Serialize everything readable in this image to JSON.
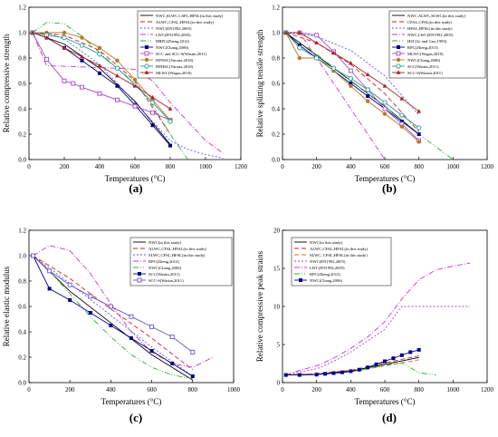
{
  "chart_data": [
    {
      "type": "line",
      "panel_label": "(a)",
      "xlabel": "Temperatures (°C)",
      "ylabel": "Relative compressive strength",
      "xlim": [
        0,
        1200
      ],
      "ylim": [
        0,
        1.2
      ],
      "xticks": [
        0,
        200,
        400,
        600,
        800,
        1000,
        1200
      ],
      "yticks": [
        0,
        0.2,
        0.4,
        0.6,
        0.8,
        1.0,
        1.2
      ],
      "legend_position": "top-right",
      "series": [
        {
          "name": "NWC,SLWC,CSFL,HFSL(in this study)",
          "color": "#000000",
          "dash": "",
          "marker": "",
          "x": [
            20,
            200,
            400,
            600,
            800
          ],
          "y": [
            1.0,
            0.91,
            0.72,
            0.46,
            0.12
          ]
        },
        {
          "name": "ALWC,CFAL,HFAL(in this study)",
          "color": "#cc2222",
          "dash": "5,3",
          "marker": "",
          "x": [
            20,
            200,
            400,
            600,
            800
          ],
          "y": [
            1.0,
            0.98,
            0.86,
            0.62,
            0.2
          ]
        },
        {
          "name": "NWC(EN1992,2005)",
          "color": "#5555ff",
          "dash": "2,2",
          "marker": "",
          "x": [
            20,
            100,
            200,
            300,
            400,
            500,
            600,
            700,
            800,
            900,
            1000,
            1100
          ],
          "y": [
            1.0,
            1.0,
            0.95,
            0.85,
            0.75,
            0.6,
            0.45,
            0.3,
            0.15,
            0.08,
            0.04,
            0.01
          ]
        },
        {
          "name": "LWC(EN1992,2005)",
          "color": "#cc33cc",
          "dash": "6,2,1,2",
          "marker": "",
          "x": [
            20,
            100,
            300,
            500,
            600,
            700,
            800,
            900,
            1000,
            1100
          ],
          "y": [
            1.0,
            0.74,
            0.73,
            0.72,
            0.71,
            0.62,
            0.45,
            0.3,
            0.15,
            0.05
          ]
        },
        {
          "name": "HRPC(Zheng,2012)",
          "color": "#33aa33",
          "dash": "6,2,1,2,1,2",
          "marker": "",
          "x": [
            20,
            100,
            200,
            300,
            400,
            500,
            600,
            700,
            800,
            900
          ],
          "y": [
            1.0,
            1.08,
            1.07,
            0.97,
            0.84,
            0.72,
            0.6,
            0.43,
            0.2,
            0.0
          ]
        },
        {
          "name": "NWC(Chang,2006)",
          "color": "#000088",
          "dash": "",
          "marker": "square",
          "x": [
            20,
            100,
            200,
            300,
            400,
            500,
            600,
            700,
            800
          ],
          "y": [
            1.0,
            0.96,
            0.88,
            0.78,
            0.68,
            0.58,
            0.43,
            0.27,
            0.11
          ]
        },
        {
          "name": "SCC and SCC-S(Wasim,2011)",
          "color": "#aa44cc",
          "dash": "",
          "marker": "open-square",
          "x": [
            20,
            100,
            200,
            250,
            300,
            400,
            500,
            600,
            700,
            800
          ],
          "y": [
            1.0,
            0.79,
            0.62,
            0.6,
            0.57,
            0.52,
            0.47,
            0.42,
            0.37,
            0.31
          ]
        },
        {
          "name": "HFNSC(Varona,2018)",
          "color": "#b5792a",
          "dash": "",
          "marker": "circle",
          "x": [
            20,
            100,
            200,
            300,
            400,
            500,
            600,
            700,
            800
          ],
          "y": [
            1.0,
            1.0,
            1.0,
            0.96,
            0.88,
            0.78,
            0.63,
            0.47,
            0.31
          ]
        },
        {
          "name": "HFHSC(Varona,2018)",
          "color": "#229999",
          "dash": "",
          "marker": "open-circle",
          "x": [
            20,
            100,
            200,
            300,
            400,
            500,
            600,
            700,
            800
          ],
          "y": [
            1.0,
            0.98,
            0.96,
            0.9,
            0.83,
            0.72,
            0.59,
            0.45,
            0.3
          ]
        },
        {
          "name": "MLWC(Wagas,2018)",
          "color": "#aa2222",
          "dash": "",
          "marker": "triangle",
          "x": [
            20,
            100,
            200,
            300,
            400,
            500,
            600,
            700,
            800
          ],
          "y": [
            1.0,
            0.96,
            0.88,
            0.81,
            0.74,
            0.66,
            0.58,
            0.49,
            0.4
          ]
        }
      ]
    },
    {
      "type": "line",
      "panel_label": "(b)",
      "xlabel": "Temperatures (°C)",
      "ylabel": "Relative splitting tensile strength",
      "xlim": [
        0,
        1200
      ],
      "ylim": [
        0,
        1.2
      ],
      "xticks": [
        0,
        200,
        400,
        600,
        800,
        1000,
        1200
      ],
      "yticks": [
        0,
        0.2,
        0.4,
        0.6,
        0.8,
        1.0,
        1.2
      ],
      "legend_position": "top-right",
      "series": [
        {
          "name": "NWC,ALWC,SLWC(in this study)",
          "color": "#000000",
          "dash": "",
          "marker": "",
          "x": [
            20,
            200,
            400,
            600,
            800
          ],
          "y": [
            1.0,
            0.82,
            0.62,
            0.42,
            0.2
          ]
        },
        {
          "name": "CFAL,CFSL(in this study)",
          "color": "#cc2222",
          "dash": "5,3",
          "marker": "",
          "x": [
            20,
            200,
            400,
            600,
            800
          ],
          "y": [
            1.0,
            0.92,
            0.75,
            0.52,
            0.22
          ]
        },
        {
          "name": "HFAL,HFSL(in this study)",
          "color": "#5555ff",
          "dash": "2,2",
          "marker": "",
          "x": [
            20,
            200,
            400,
            600,
            800
          ],
          "y": [
            1.0,
            0.97,
            0.86,
            0.66,
            0.35
          ]
        },
        {
          "name": "NWC,LWC(EN1992,2005)",
          "color": "#cc33cc",
          "dash": "6,2,1,2",
          "marker": "",
          "x": [
            20,
            100,
            200,
            300,
            400,
            500,
            600
          ],
          "y": [
            1.0,
            1.0,
            0.8,
            0.6,
            0.4,
            0.2,
            0.0
          ]
        },
        {
          "name": "HSC(Li and Guo,1993)",
          "color": "#33aa33",
          "dash": "6,2,1,2,1,2",
          "marker": "",
          "x": [
            20,
            200,
            400,
            600,
            800,
            1000
          ],
          "y": [
            1.0,
            0.83,
            0.62,
            0.42,
            0.2,
            0.0
          ]
        },
        {
          "name": "RPC(Zheng,2013)",
          "color": "#000088",
          "dash": "",
          "marker": "square",
          "x": [
            20,
            100,
            200,
            300,
            400,
            500,
            600,
            700,
            800
          ],
          "y": [
            1.0,
            0.9,
            0.8,
            0.7,
            0.6,
            0.5,
            0.4,
            0.3,
            0.2
          ]
        },
        {
          "name": "MLWC(Wagas,2018)",
          "color": "#aa44cc",
          "dash": "",
          "marker": "open-square",
          "x": [
            20,
            100,
            200,
            300,
            400,
            500,
            600,
            700,
            800
          ],
          "y": [
            1.0,
            1.0,
            0.98,
            0.85,
            0.7,
            0.55,
            0.4,
            0.28,
            0.15
          ]
        },
        {
          "name": "NWC(Chang,2006)",
          "color": "#b5792a",
          "dash": "",
          "marker": "circle",
          "x": [
            20,
            100,
            200,
            300,
            400,
            500,
            600,
            700,
            800
          ],
          "y": [
            1.0,
            0.8,
            0.8,
            0.7,
            0.58,
            0.46,
            0.36,
            0.26,
            0.14
          ]
        },
        {
          "name": "SCC(Wasim,2011)",
          "color": "#229999",
          "dash": "",
          "marker": "open-circle",
          "x": [
            20,
            100,
            200,
            300,
            400,
            500,
            600,
            700,
            800
          ],
          "y": [
            1.0,
            0.88,
            0.8,
            0.72,
            0.64,
            0.55,
            0.45,
            0.35,
            0.25
          ]
        },
        {
          "name": "SCC-S(Wasim,2011)",
          "color": "#aa2222",
          "dash": "",
          "marker": "triangle",
          "x": [
            20,
            100,
            200,
            300,
            400,
            500,
            600,
            700,
            800
          ],
          "y": [
            1.0,
            1.0,
            0.92,
            0.84,
            0.76,
            0.67,
            0.58,
            0.48,
            0.38
          ]
        }
      ]
    },
    {
      "type": "line",
      "panel_label": "(c)",
      "xlabel": "Temperatures (°C)",
      "ylabel": "Relative elastic modulus",
      "xlim": [
        0,
        1000
      ],
      "ylim": [
        0,
        1.2
      ],
      "xticks": [
        0,
        200,
        400,
        600,
        800,
        1000
      ],
      "yticks": [
        0,
        0.2,
        0.4,
        0.6,
        0.8,
        1.0,
        1.2
      ],
      "legend_position": "top-right",
      "series": [
        {
          "name": "NWC(in this study)",
          "color": "#000000",
          "dash": "",
          "marker": "",
          "x": [
            20,
            200,
            400,
            600,
            800
          ],
          "y": [
            1.0,
            0.72,
            0.47,
            0.22,
            0.02
          ]
        },
        {
          "name": "ALWC,CFAL,HFAL(in this study)",
          "color": "#cc2222",
          "dash": "5,3",
          "marker": "",
          "x": [
            20,
            200,
            400,
            600,
            800
          ],
          "y": [
            1.0,
            0.82,
            0.58,
            0.35,
            0.1
          ]
        },
        {
          "name": "SLWC,CFSL,HFSL(in this study)",
          "color": "#5555ff",
          "dash": "2,2",
          "marker": "",
          "x": [
            20,
            200,
            400,
            600,
            800
          ],
          "y": [
            1.0,
            0.78,
            0.53,
            0.28,
            0.05
          ]
        },
        {
          "name": "RPC(Zheng,2012)",
          "color": "#cc33cc",
          "dash": "6,2,1,2",
          "marker": "",
          "x": [
            20,
            100,
            200,
            300,
            400,
            500,
            600,
            700,
            800,
            900
          ],
          "y": [
            1.0,
            1.08,
            1.04,
            0.86,
            0.62,
            0.4,
            0.24,
            0.15,
            0.12,
            0.2
          ]
        },
        {
          "name": "NWC(Chang,2006)",
          "color": "#33aa33",
          "dash": "6,2,1,2,1,2",
          "marker": "",
          "x": [
            20,
            100,
            200,
            300,
            400,
            500,
            600,
            700,
            800
          ],
          "y": [
            1.0,
            0.88,
            0.7,
            0.52,
            0.36,
            0.22,
            0.12,
            0.06,
            0.03
          ]
        },
        {
          "name": "SCC(Wasim,2011)",
          "color": "#000088",
          "dash": "",
          "marker": "square",
          "x": [
            20,
            100,
            200,
            300,
            400,
            500,
            600,
            700,
            800
          ],
          "y": [
            1.0,
            0.74,
            0.65,
            0.55,
            0.45,
            0.35,
            0.25,
            0.15,
            0.05
          ]
        },
        {
          "name": "SCC-S(Wasim,2011)",
          "color": "#6655cc",
          "dash": "",
          "marker": "open-square",
          "x": [
            20,
            100,
            200,
            300,
            400,
            500,
            600,
            700,
            800
          ],
          "y": [
            1.0,
            0.88,
            0.77,
            0.68,
            0.6,
            0.52,
            0.44,
            0.36,
            0.24
          ]
        }
      ]
    },
    {
      "type": "line",
      "panel_label": "(d)",
      "xlabel": "Temperatures (°C)",
      "ylabel": "Relative compressive peak strains",
      "xlim": [
        0,
        1200
      ],
      "ylim": [
        0,
        20
      ],
      "xticks": [
        0,
        200,
        400,
        600,
        800,
        1000,
        1200
      ],
      "yticks": [
        0,
        5,
        10,
        15,
        20
      ],
      "legend_position": "top-left",
      "series": [
        {
          "name": "NWC(in this study)",
          "color": "#000000",
          "dash": "",
          "marker": "",
          "x": [
            20,
            200,
            400,
            600,
            800
          ],
          "y": [
            1.0,
            1.1,
            1.5,
            2.4,
            3.3
          ]
        },
        {
          "name": "ALWC,CFAL,HFAL(in this study)",
          "color": "#cc2222",
          "dash": "5,3",
          "marker": "",
          "x": [
            20,
            200,
            400,
            600,
            800
          ],
          "y": [
            1.0,
            1.2,
            1.6,
            2.6,
            3.5
          ]
        },
        {
          "name": "SLWC, CFSL,HFSL(in this study)",
          "color": "#b5792a",
          "dash": "5,3",
          "marker": "",
          "x": [
            20,
            200,
            400,
            600,
            800
          ],
          "y": [
            1.0,
            1.1,
            1.4,
            2.2,
            3.0
          ]
        },
        {
          "name": "NWC(EN1992,2005)",
          "color": "#aa44cc",
          "dash": "2,2",
          "marker": "",
          "x": [
            20,
            100,
            200,
            300,
            400,
            500,
            600,
            700,
            800,
            900,
            1000,
            1100
          ],
          "y": [
            1.0,
            1.4,
            1.8,
            2.8,
            4.0,
            5.5,
            7.0,
            10.0,
            10.0,
            10.0,
            10.0,
            10.0
          ]
        },
        {
          "name": "LWC(EN1992,2005)",
          "color": "#cc33cc",
          "dash": "6,2,1,2",
          "marker": "",
          "x": [
            20,
            100,
            200,
            300,
            400,
            500,
            600,
            700,
            800,
            900,
            1000,
            1100
          ],
          "y": [
            1.0,
            1.6,
            2.2,
            3.2,
            4.5,
            6.0,
            8.0,
            11.0,
            13.5,
            14.8,
            15.3,
            15.7
          ]
        },
        {
          "name": "RPC(Zheng,2012)",
          "color": "#33aa33",
          "dash": "6,2,1,2,1,2",
          "marker": "",
          "x": [
            20,
            100,
            200,
            300,
            400,
            500,
            600,
            700,
            800,
            900
          ],
          "y": [
            1.0,
            1.0,
            1.1,
            1.2,
            1.4,
            1.8,
            2.3,
            2.6,
            1.3,
            1.0
          ]
        },
        {
          "name": "NWC(Chang,2006)",
          "color": "#000088",
          "dash": "",
          "marker": "square",
          "x": [
            20,
            100,
            200,
            250,
            300,
            350,
            400,
            450,
            500,
            550,
            600,
            650,
            700,
            750,
            800
          ],
          "y": [
            1.0,
            1.0,
            1.05,
            1.15,
            1.25,
            1.35,
            1.5,
            1.7,
            2.0,
            2.4,
            2.8,
            3.2,
            3.6,
            4.0,
            4.3
          ]
        }
      ]
    }
  ]
}
